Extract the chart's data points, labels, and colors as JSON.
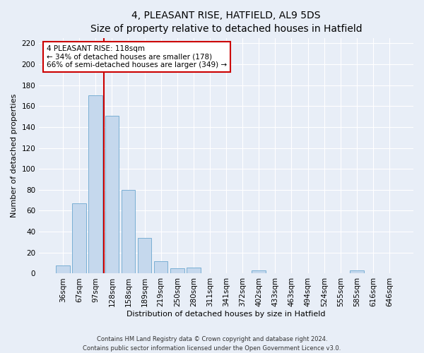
{
  "title": "4, PLEASANT RISE, HATFIELD, AL9 5DS",
  "subtitle": "Size of property relative to detached houses in Hatfield",
  "xlabel": "Distribution of detached houses by size in Hatfield",
  "ylabel": "Number of detached properties",
  "bar_labels": [
    "36sqm",
    "67sqm",
    "97sqm",
    "128sqm",
    "158sqm",
    "189sqm",
    "219sqm",
    "250sqm",
    "280sqm",
    "311sqm",
    "341sqm",
    "372sqm",
    "402sqm",
    "433sqm",
    "463sqm",
    "494sqm",
    "524sqm",
    "555sqm",
    "585sqm",
    "616sqm",
    "646sqm"
  ],
  "bar_values": [
    8,
    67,
    170,
    151,
    80,
    34,
    12,
    5,
    6,
    0,
    0,
    0,
    3,
    0,
    0,
    0,
    0,
    0,
    3,
    0,
    0
  ],
  "bar_color": "#c5d8ed",
  "bar_edge_color": "#7aafd4",
  "vline_x_idx": 2.5,
  "vline_color": "#cc0000",
  "annotation_text": "4 PLEASANT RISE: 118sqm\n← 34% of detached houses are smaller (178)\n66% of semi-detached houses are larger (349) →",
  "annotation_box_color": "#cc0000",
  "ylim": [
    0,
    225
  ],
  "yticks": [
    0,
    20,
    40,
    60,
    80,
    100,
    120,
    140,
    160,
    180,
    200,
    220
  ],
  "footer_line1": "Contains HM Land Registry data © Crown copyright and database right 2024.",
  "footer_line2": "Contains public sector information licensed under the Open Government Licence v3.0.",
  "bg_color": "#e8eef7",
  "grid_color": "#ffffff",
  "title_fontsize": 10,
  "subtitle_fontsize": 9,
  "axis_label_fontsize": 8,
  "tick_fontsize": 7.5,
  "footer_fontsize": 6,
  "ann_fontsize": 7.5
}
